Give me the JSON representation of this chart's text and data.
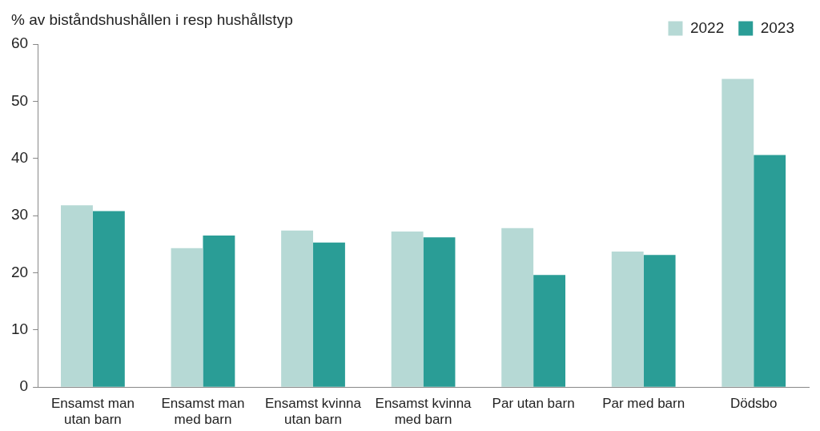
{
  "chart_data": {
    "type": "bar",
    "ylabel": "% av biståndshushållen i resp hushållstyp",
    "categories": [
      "Ensamst man\nutan barn",
      "Ensamst man\nmed barn",
      "Ensamst kvinna\nutan barn",
      "Ensamst kvinna\nmed barn",
      "Par utan barn",
      "Par med barn",
      "Dödsbo"
    ],
    "series": [
      {
        "name": "2022",
        "color": "#b6d9d5",
        "values": [
          31.8,
          24.3,
          27.4,
          27.2,
          27.8,
          23.7,
          53.9
        ]
      },
      {
        "name": "2023",
        "color": "#2a9d96",
        "values": [
          30.8,
          26.5,
          25.3,
          26.2,
          19.6,
          23.1,
          40.6
        ]
      }
    ],
    "ylim": [
      0,
      60
    ],
    "yticks": [
      0,
      10,
      20,
      30,
      40,
      50,
      60
    ],
    "grid": false,
    "legend": "top right"
  }
}
